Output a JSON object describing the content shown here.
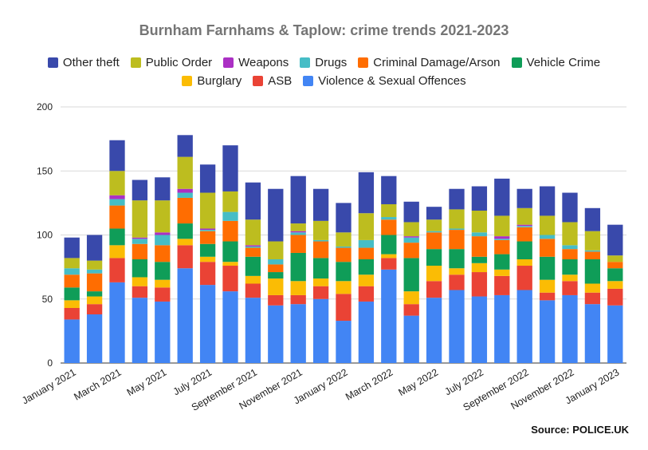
{
  "chart_data": {
    "type": "bar",
    "stacked": true,
    "title": "Burnham Farnhams & Taplow: crime trends 2021-2023",
    "source": "Source: POLICE.UK",
    "ylim": [
      0,
      200
    ],
    "yticks": [
      0,
      50,
      100,
      150,
      200
    ],
    "grid": true,
    "legend_position": "top",
    "categories": [
      "January 2021",
      "February 2021",
      "March 2021",
      "April 2021",
      "May 2021",
      "June 2021",
      "July 2021",
      "August 2021",
      "September 2021",
      "October 2021",
      "November 2021",
      "December 2021",
      "January 2022",
      "February 2022",
      "March 2022",
      "April 2022",
      "May 2022",
      "June 2022",
      "July 2022",
      "August 2022",
      "September 2022",
      "October 2022",
      "November 2022",
      "December 2022",
      "January 2023"
    ],
    "x_tick_labels": [
      "January 2021",
      "",
      "March 2021",
      "",
      "May 2021",
      "",
      "July 2021",
      "",
      "September 2021",
      "",
      "November 2021",
      "",
      "January 2022",
      "",
      "March 2022",
      "",
      "May 2022",
      "",
      "July 2022",
      "",
      "September 2022",
      "",
      "November 2022",
      "",
      "January 2023"
    ],
    "series": [
      {
        "name": "Violence & Sexual Offences",
        "color": "#4285f4",
        "values": [
          34,
          38,
          63,
          51,
          48,
          74,
          61,
          56,
          51,
          45,
          46,
          50,
          33,
          48,
          73,
          37,
          51,
          57,
          52,
          53,
          57,
          49,
          53,
          46,
          45
        ]
      },
      {
        "name": "ASB",
        "color": "#ea4335",
        "values": [
          9,
          8,
          19,
          9,
          11,
          18,
          18,
          20,
          11,
          8,
          7,
          10,
          21,
          12,
          9,
          9,
          13,
          12,
          19,
          15,
          19,
          6,
          11,
          9,
          13
        ]
      },
      {
        "name": "Burglary",
        "color": "#fbbc04",
        "values": [
          6,
          6,
          10,
          7,
          6,
          5,
          4,
          3,
          6,
          13,
          11,
          6,
          10,
          9,
          3,
          10,
          12,
          5,
          7,
          5,
          5,
          10,
          5,
          7,
          6
        ]
      },
      {
        "name": "Vehicle Crime",
        "color": "#0f9d58",
        "values": [
          10,
          4,
          13,
          14,
          14,
          12,
          10,
          16,
          15,
          5,
          22,
          16,
          15,
          12,
          15,
          26,
          13,
          15,
          5,
          12,
          14,
          18,
          12,
          19,
          10
        ]
      },
      {
        "name": "Criminal Damage/Arson",
        "color": "#ff6d01",
        "values": [
          10,
          14,
          18,
          12,
          13,
          20,
          10,
          16,
          7,
          6,
          14,
          13,
          11,
          9,
          12,
          12,
          13,
          15,
          16,
          11,
          11,
          14,
          8,
          6,
          5
        ]
      },
      {
        "name": "Drugs",
        "color": "#46bdc6",
        "values": [
          5,
          3,
          5,
          4,
          8,
          4,
          1,
          7,
          1,
          4,
          2,
          1,
          1,
          6,
          2,
          4,
          1,
          1,
          3,
          1,
          1,
          3,
          3,
          1,
          0
        ]
      },
      {
        "name": "Weapons",
        "color": "#ab30c4",
        "values": [
          0,
          0,
          3,
          1,
          2,
          3,
          1,
          0,
          1,
          0,
          1,
          0,
          0,
          0,
          0,
          1,
          0,
          0,
          0,
          2,
          1,
          0,
          0,
          0,
          0
        ]
      },
      {
        "name": "Public Order",
        "color": "#bdbd1f",
        "values": [
          8,
          7,
          19,
          29,
          25,
          25,
          28,
          16,
          20,
          14,
          6,
          15,
          11,
          21,
          10,
          11,
          9,
          15,
          17,
          16,
          13,
          15,
          18,
          15,
          5
        ]
      },
      {
        "name": "Other theft",
        "color": "#3949ab",
        "values": [
          16,
          20,
          24,
          16,
          18,
          17,
          22,
          36,
          29,
          41,
          37,
          25,
          23,
          32,
          22,
          16,
          10,
          16,
          19,
          29,
          15,
          23,
          23,
          18,
          24
        ]
      }
    ],
    "legend_order_row1": [
      "Other theft",
      "Public Order",
      "Weapons",
      "Drugs",
      "Criminal Damage/Arson",
      "Vehicle Crime"
    ],
    "legend_order_row2": [
      "Burglary",
      "ASB",
      "Violence & Sexual Offences"
    ]
  }
}
